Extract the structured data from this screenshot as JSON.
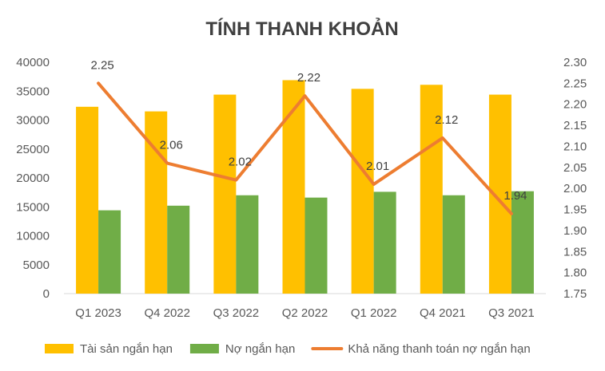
{
  "chart_data": {
    "type": "bar",
    "title": "TÍNH THANH KHOẢN",
    "categories": [
      "Q1 2023",
      "Q4 2022",
      "Q3 2022",
      "Q2 2022",
      "Q1 2022",
      "Q4 2021",
      "Q3 2021"
    ],
    "series": [
      {
        "name": "Tài sản ngắn hạn",
        "type": "bar",
        "axis": "left",
        "color": "#FFC000",
        "values": [
          32300,
          31500,
          34400,
          36900,
          35400,
          36100,
          34400
        ]
      },
      {
        "name": "Nợ ngắn hạn",
        "type": "bar",
        "axis": "left",
        "color": "#70AD47",
        "values": [
          14400,
          15200,
          17000,
          16600,
          17600,
          17000,
          17700
        ]
      },
      {
        "name": "Khả năng thanh toán nợ ngắn hạn",
        "type": "line",
        "axis": "right",
        "color": "#ED7D31",
        "values": [
          2.25,
          2.06,
          2.02,
          2.22,
          2.01,
          2.12,
          1.94
        ],
        "labels": [
          "2.25",
          "2.06",
          "2.02",
          "2.22",
          "2.01",
          "2.12",
          "1.94"
        ]
      }
    ],
    "y_left": {
      "min": 0,
      "max": 40000,
      "step": 5000,
      "ticks": [
        "0",
        "5000",
        "10000",
        "15000",
        "20000",
        "25000",
        "30000",
        "35000",
        "40000"
      ]
    },
    "y_right": {
      "min": 1.75,
      "max": 2.3,
      "step": 0.05,
      "ticks": [
        "1.75",
        "1.80",
        "1.85",
        "1.90",
        "1.95",
        "2.00",
        "2.05",
        "2.10",
        "2.15",
        "2.20",
        "2.25",
        "2.30"
      ]
    },
    "grid": false,
    "legend": "bottom"
  }
}
